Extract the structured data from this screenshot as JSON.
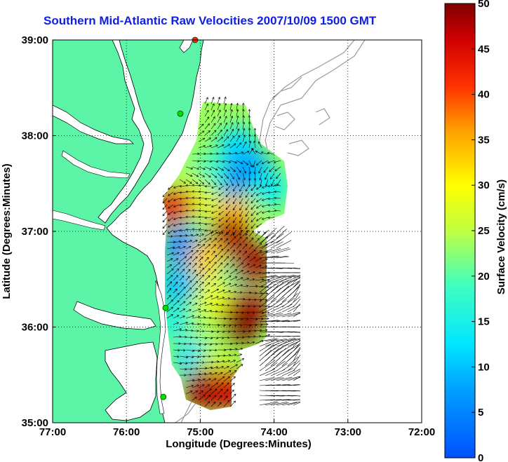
{
  "title": "Southern Mid-Atlantic Raw Velocities 2007/10/09 1500 GMT",
  "axes": {
    "xlabel": "Longitude (Degrees:Minutes)",
    "ylabel": "Latitude (Degrees:Minutes)",
    "x_ticks": [
      "77:00",
      "76:00",
      "75:00",
      "74:00",
      "73:00",
      "72:00"
    ],
    "y_ticks": [
      "39:00",
      "38:00",
      "37:00",
      "36:00",
      "35:00"
    ],
    "lon_range": [
      -77,
      -72
    ],
    "lat_range": [
      35,
      39
    ],
    "grid": "dotted"
  },
  "colorbar": {
    "label": "Surface Velocity (cm/s)",
    "ticks": [
      "50",
      "45",
      "40",
      "35",
      "30",
      "25",
      "20",
      "15",
      "10",
      "5",
      "0"
    ],
    "range": [
      0,
      50
    ],
    "colormap": "jet"
  },
  "colors": {
    "land": "#5cf5a8",
    "coastline": "#000000",
    "bathymetry": "#9a9a9a",
    "title": "#1020e0",
    "station": "#00e000",
    "station_alt": "#ff2020"
  },
  "map_data": {
    "stations": [
      {
        "lon": -75.07,
        "lat": 39.0,
        "color": "#ff2020"
      },
      {
        "lon": -75.27,
        "lat": 38.23,
        "color": "#00e000"
      },
      {
        "lon": -75.47,
        "lat": 36.2,
        "color": "#00e000"
      },
      {
        "lon": -75.5,
        "lat": 35.27,
        "color": "#00e000"
      }
    ],
    "velocity_cells": [
      {
        "lon": -74.5,
        "lat": 37.9,
        "speed": 12
      },
      {
        "lon": -74.3,
        "lat": 37.65,
        "speed": 8
      },
      {
        "lon": -74.6,
        "lat": 37.55,
        "speed": 6
      },
      {
        "lon": -74.05,
        "lat": 37.45,
        "speed": 14
      },
      {
        "lon": -74.9,
        "lat": 37.6,
        "speed": 18
      },
      {
        "lon": -75.2,
        "lat": 37.5,
        "speed": 24
      },
      {
        "lon": -75.0,
        "lat": 37.3,
        "speed": 27
      },
      {
        "lon": -74.55,
        "lat": 37.15,
        "speed": 34
      },
      {
        "lon": -75.35,
        "lat": 37.25,
        "speed": 44
      },
      {
        "lon": -75.1,
        "lat": 36.95,
        "speed": 22
      },
      {
        "lon": -75.25,
        "lat": 36.85,
        "speed": 6
      },
      {
        "lon": -74.6,
        "lat": 36.95,
        "speed": 48
      },
      {
        "lon": -74.9,
        "lat": 36.7,
        "speed": 33
      },
      {
        "lon": -74.5,
        "lat": 36.55,
        "speed": 20
      },
      {
        "lon": -74.3,
        "lat": 36.65,
        "speed": 48
      },
      {
        "lon": -75.3,
        "lat": 36.45,
        "speed": 10
      },
      {
        "lon": -74.8,
        "lat": 36.3,
        "speed": 28
      },
      {
        "lon": -74.35,
        "lat": 36.2,
        "speed": 48
      },
      {
        "lon": -74.5,
        "lat": 36.0,
        "speed": 50
      },
      {
        "lon": -75.35,
        "lat": 36.05,
        "speed": 16
      },
      {
        "lon": -74.9,
        "lat": 35.9,
        "speed": 24
      },
      {
        "lon": -75.1,
        "lat": 35.65,
        "speed": 12
      },
      {
        "lon": -74.8,
        "lat": 35.55,
        "speed": 26
      },
      {
        "lon": -74.95,
        "lat": 35.35,
        "speed": 48
      },
      {
        "lon": -74.6,
        "lat": 35.35,
        "speed": 46
      }
    ]
  }
}
